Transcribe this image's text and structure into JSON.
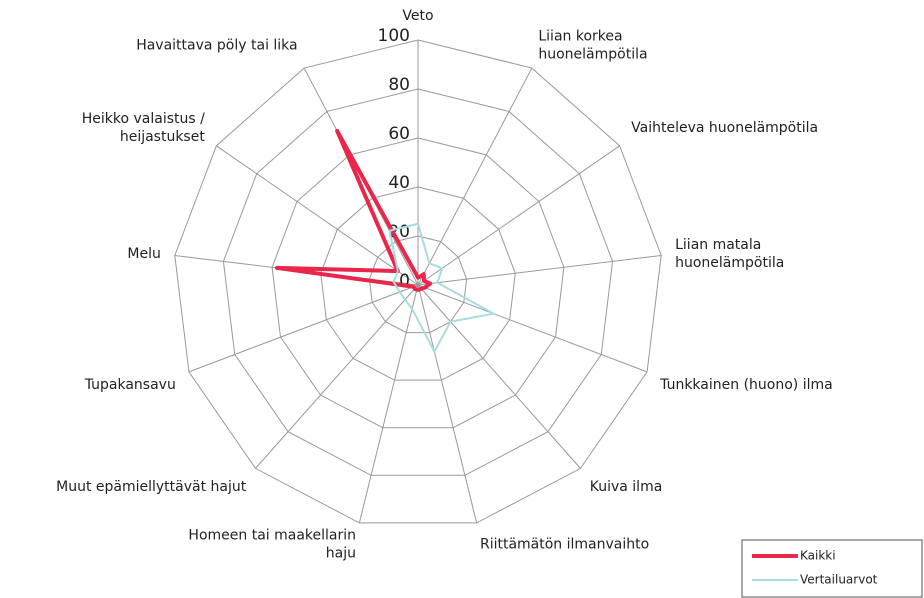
{
  "chart_data": {
    "type": "radar",
    "categories": [
      "Veto",
      "Liian korkea\nhuonelämpötila",
      "Vaihteleva huonelämpötila",
      "Liian matala\nhuonelämpötila",
      "Tunkkainen (huono) ilma",
      "Kuiva ilma",
      "Riittämätön ilmanvaihto",
      "Homeen tai maakellarin\nhaju",
      "Muut epämiellyttävät hajut",
      "Tupakansavu",
      "Melu",
      "Heikko valaistus /\nheijastukset",
      "Havaittava pöly tai lika"
    ],
    "series": [
      {
        "name": "Kaikki",
        "color": "#e8274b",
        "values": [
          3,
          5,
          3,
          5,
          3,
          2,
          2,
          2,
          2,
          2,
          58,
          10,
          71
        ]
      },
      {
        "name": "Vertailuarvot",
        "color": "#a8dde0",
        "values": [
          25,
          10,
          12,
          8,
          33,
          20,
          28,
          10,
          8,
          8,
          10,
          10,
          25
        ]
      }
    ],
    "ylim": [
      0,
      100
    ],
    "yticks": [
      0,
      20,
      40,
      60,
      80,
      100
    ],
    "grid": true,
    "legend": "lower right"
  }
}
